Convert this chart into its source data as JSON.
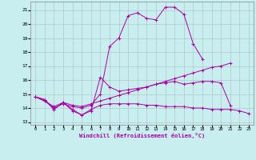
{
  "title": "",
  "xlabel": "Windchill (Refroidissement éolien,°C)",
  "background_color": "#c8eef0",
  "grid_color": "#b0c8c8",
  "line_color": "#aa00aa",
  "x_ticks": [
    0,
    1,
    2,
    3,
    4,
    5,
    6,
    7,
    8,
    9,
    10,
    11,
    12,
    13,
    14,
    15,
    16,
    17,
    18,
    19,
    20,
    21,
    22,
    23
  ],
  "ylim": [
    12.8,
    21.6
  ],
  "xlim": [
    -0.5,
    23.5
  ],
  "yticks": [
    13,
    14,
    15,
    16,
    17,
    18,
    19,
    20,
    21
  ],
  "series": [
    [
      14.8,
      14.6,
      13.9,
      14.4,
      13.9,
      13.5,
      13.8,
      16.2,
      15.5,
      15.2,
      15.3,
      15.4,
      15.5,
      15.7,
      15.8,
      15.9,
      15.7,
      15.8,
      15.9,
      15.9,
      15.8,
      14.2,
      null,
      null
    ],
    [
      14.8,
      14.6,
      13.9,
      14.4,
      13.8,
      13.5,
      13.9,
      14.2,
      14.3,
      14.3,
      14.3,
      14.3,
      14.2,
      14.2,
      14.1,
      14.1,
      14.1,
      14.0,
      14.0,
      13.9,
      13.9,
      13.9,
      13.8,
      13.6
    ],
    [
      14.8,
      14.5,
      14.1,
      14.4,
      14.2,
      14.1,
      14.3,
      14.5,
      14.7,
      14.9,
      15.1,
      15.3,
      15.5,
      15.7,
      15.9,
      16.1,
      16.3,
      16.5,
      16.7,
      16.9,
      17.0,
      17.2,
      null,
      null
    ],
    [
      14.8,
      14.5,
      14.0,
      14.3,
      14.1,
      14.0,
      14.2,
      15.0,
      18.4,
      19.0,
      20.6,
      20.8,
      20.4,
      20.3,
      21.2,
      21.2,
      20.7,
      18.6,
      17.5,
      null,
      null,
      null,
      null,
      null
    ]
  ]
}
